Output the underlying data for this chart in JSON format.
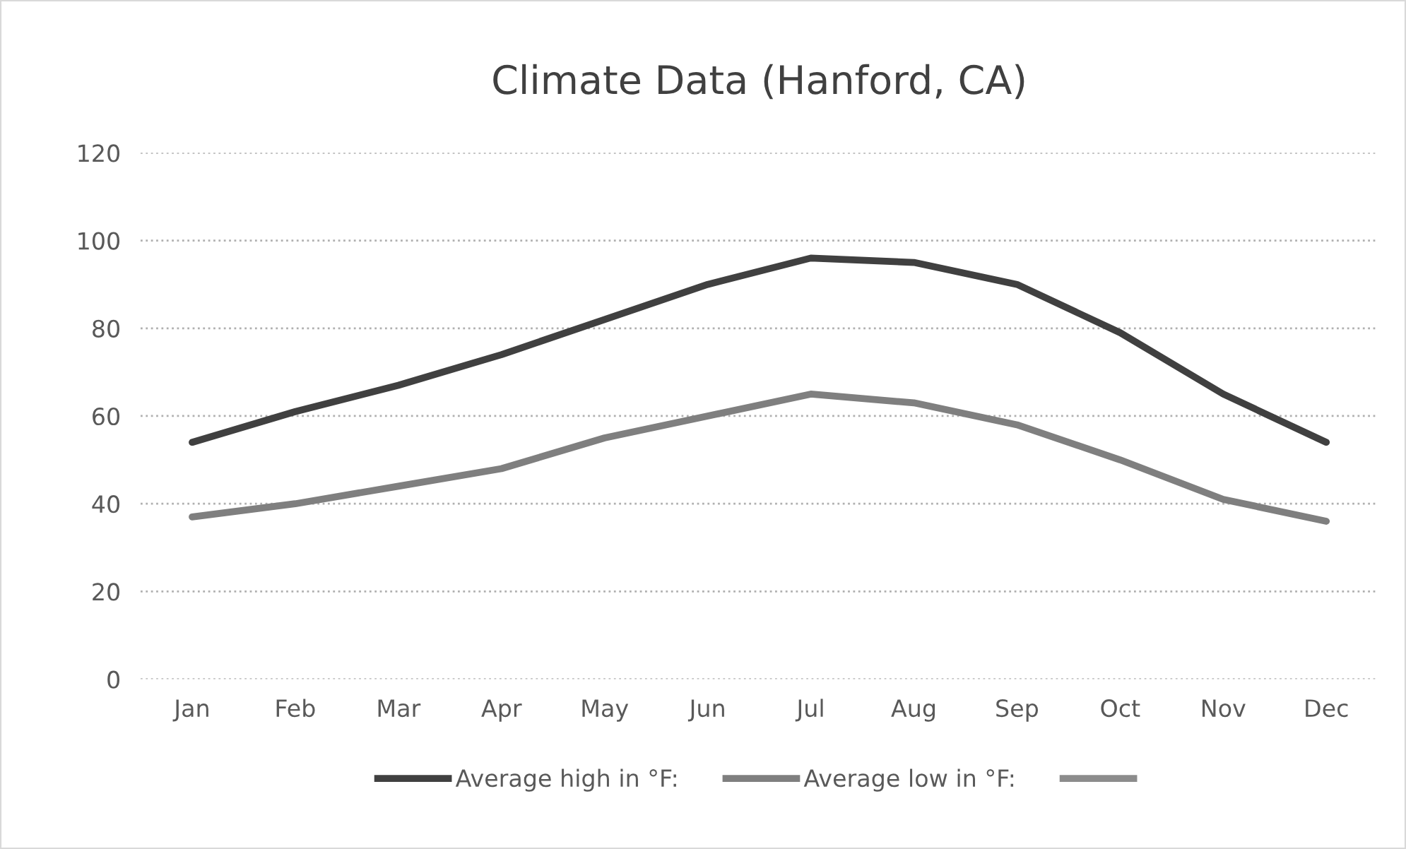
{
  "chart_data": {
    "type": "line",
    "title": "Climate Data (Hanford, CA)",
    "categories": [
      "Jan",
      "Feb",
      "Mar",
      "Apr",
      "May",
      "Jun",
      "Jul",
      "Aug",
      "Sep",
      "Oct",
      "Nov",
      "Dec"
    ],
    "series": [
      {
        "name": "Average high in °F:",
        "color": "#404040",
        "values": [
          54,
          61,
          67,
          74,
          82,
          90,
          96,
          95,
          90,
          79,
          65,
          54
        ]
      },
      {
        "name": "Average low in °F:",
        "color": "#7f7f7f",
        "values": [
          37,
          40,
          44,
          48,
          55,
          60,
          65,
          63,
          58,
          50,
          41,
          36
        ]
      },
      {
        "color": "#8c8c8c",
        "values": [
          null,
          null,
          null,
          null,
          null,
          null,
          null,
          null,
          null,
          null,
          null,
          null
        ]
      }
    ],
    "ylim": [
      0,
      120
    ],
    "yticks": [
      0,
      20,
      40,
      60,
      80,
      100,
      120
    ],
    "grid": "y",
    "legend": "bottom",
    "marker": "none",
    "line_style": "solid"
  }
}
